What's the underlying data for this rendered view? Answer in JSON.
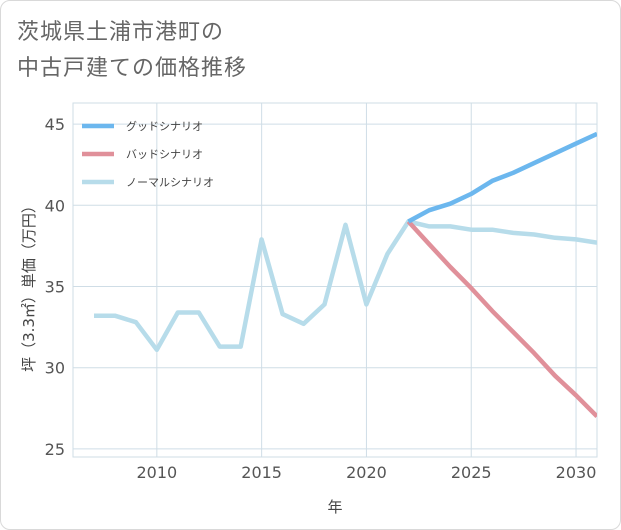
{
  "title": {
    "line1": "茨城県土浦市港町の",
    "line2": "中古戸建ての価格推移"
  },
  "chart_data": {
    "type": "line",
    "xlabel": "年",
    "ylabel": "坪（3.3㎡）単価（万円）",
    "xlim": [
      2006,
      2031
    ],
    "ylim": [
      24.5,
      46.3
    ],
    "xticks": [
      2010,
      2015,
      2020,
      2025,
      2030
    ],
    "yticks": [
      25,
      30,
      35,
      40,
      45
    ],
    "grid": true,
    "legend_position": "top-left",
    "series": [
      {
        "name": "グッドシナリオ",
        "color": "#6cb7ee",
        "x": [
          2022,
          2023,
          2024,
          2025,
          2026,
          2027,
          2028,
          2029,
          2030,
          2031
        ],
        "values": [
          39.0,
          39.7,
          40.1,
          40.7,
          41.5,
          42.0,
          42.6,
          43.2,
          43.8,
          44.4
        ]
      },
      {
        "name": "バッドシナリオ",
        "color": "#e0909a",
        "x": [
          2022,
          2023,
          2024,
          2025,
          2026,
          2027,
          2028,
          2029,
          2030,
          2031
        ],
        "values": [
          39.0,
          37.6,
          36.2,
          34.9,
          33.5,
          32.2,
          30.9,
          29.5,
          28.3,
          27.0
        ]
      },
      {
        "name": "ノーマルシナリオ",
        "color": "#b7dcea",
        "x": [
          2007,
          2008,
          2009,
          2010,
          2011,
          2012,
          2013,
          2014,
          2015,
          2016,
          2017,
          2018,
          2019,
          2020,
          2021,
          2022,
          2023,
          2024,
          2025,
          2026,
          2027,
          2028,
          2029,
          2030,
          2031
        ],
        "values": [
          33.2,
          33.2,
          32.8,
          31.1,
          33.4,
          33.4,
          31.3,
          31.3,
          37.9,
          33.3,
          32.7,
          33.9,
          38.8,
          33.9,
          37.0,
          39.0,
          38.7,
          38.7,
          38.5,
          38.5,
          38.3,
          38.2,
          38.0,
          37.9,
          37.7
        ]
      }
    ]
  }
}
